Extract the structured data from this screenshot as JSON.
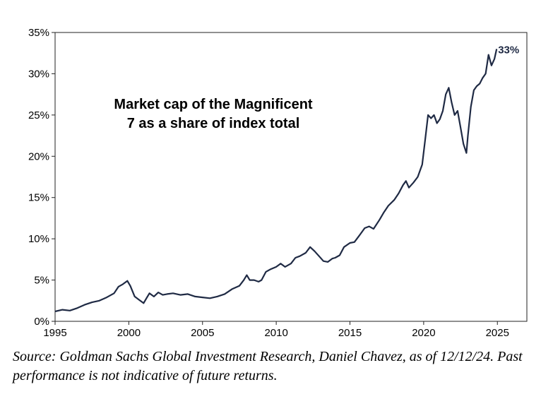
{
  "chart_data": {
    "type": "line",
    "title_lines": [
      "Market cap of the Magnificent",
      "7 as a share of index total"
    ],
    "xlabel": "",
    "ylabel": "",
    "x_ticks": [
      "1995",
      "2000",
      "2005",
      "2010",
      "2015",
      "2020",
      "2025"
    ],
    "y_ticks": [
      "0%",
      "5%",
      "10%",
      "15%",
      "20%",
      "25%",
      "30%",
      "35%"
    ],
    "xlim": [
      1995,
      2027
    ],
    "ylim": [
      0,
      35
    ],
    "line_color": "#1f2a44",
    "grid": false,
    "end_label": "33%",
    "series": [
      {
        "x": [
          1995.0,
          1995.5,
          1996.0,
          1996.5,
          1997.0,
          1997.5,
          1998.0,
          1998.5,
          1999.0,
          1999.3,
          1999.6,
          1999.9,
          2000.1,
          2000.4,
          2000.7,
          2001.0,
          2001.2,
          2001.4,
          2001.7,
          2002.0,
          2002.3,
          2002.6,
          2003.0,
          2003.5,
          2004.0,
          2004.5,
          2005.0,
          2005.5,
          2006.0,
          2006.5,
          2007.0,
          2007.5,
          2007.8,
          2008.0,
          2008.2,
          2008.5,
          2008.8,
          2009.0,
          2009.3,
          2009.6,
          2010.0,
          2010.3,
          2010.6,
          2011.0,
          2011.3,
          2011.6,
          2012.0,
          2012.3,
          2012.6,
          2012.9,
          2013.2,
          2013.5,
          2013.8,
          2014.0,
          2014.3,
          2014.6,
          2015.0,
          2015.3,
          2015.6,
          2016.0,
          2016.3,
          2016.6,
          2017.0,
          2017.3,
          2017.6,
          2018.0,
          2018.3,
          2018.6,
          2018.8,
          2019.0,
          2019.3,
          2019.6,
          2019.9,
          2020.1,
          2020.3,
          2020.5,
          2020.7,
          2020.9,
          2021.1,
          2021.3,
          2021.5,
          2021.7,
          2021.9,
          2022.1,
          2022.3,
          2022.5,
          2022.7,
          2022.9,
          2023.0,
          2023.2,
          2023.4,
          2023.6,
          2023.8,
          2024.0,
          2024.2,
          2024.4,
          2024.6,
          2024.8,
          2024.95
        ],
        "y": [
          1.2,
          1.4,
          1.3,
          1.6,
          2.0,
          2.3,
          2.5,
          2.9,
          3.4,
          4.2,
          4.5,
          4.9,
          4.3,
          3.0,
          2.6,
          2.2,
          2.8,
          3.4,
          3.0,
          3.5,
          3.2,
          3.3,
          3.4,
          3.2,
          3.3,
          3.0,
          2.9,
          2.8,
          3.0,
          3.3,
          3.9,
          4.3,
          5.0,
          5.6,
          5.0,
          5.0,
          4.8,
          5.0,
          6.0,
          6.3,
          6.6,
          7.0,
          6.6,
          7.0,
          7.7,
          7.9,
          8.3,
          9.0,
          8.5,
          7.9,
          7.3,
          7.2,
          7.6,
          7.7,
          8.0,
          9.0,
          9.5,
          9.6,
          10.3,
          11.3,
          11.5,
          11.2,
          12.3,
          13.2,
          14.0,
          14.7,
          15.5,
          16.5,
          17.0,
          16.2,
          16.8,
          17.5,
          19.0,
          22.0,
          25.0,
          24.6,
          25.0,
          24.0,
          24.5,
          25.5,
          27.5,
          28.3,
          26.5,
          25.0,
          25.5,
          23.5,
          21.5,
          20.4,
          22.5,
          26.0,
          28.0,
          28.5,
          28.8,
          29.5,
          30.0,
          32.3,
          31.0,
          31.8,
          33.0
        ]
      }
    ]
  },
  "source_note": "Source: Goldman Sachs Global Investment Research, Daniel Chavez,  as of 12/12/24. Past performance is not indicative of future returns."
}
